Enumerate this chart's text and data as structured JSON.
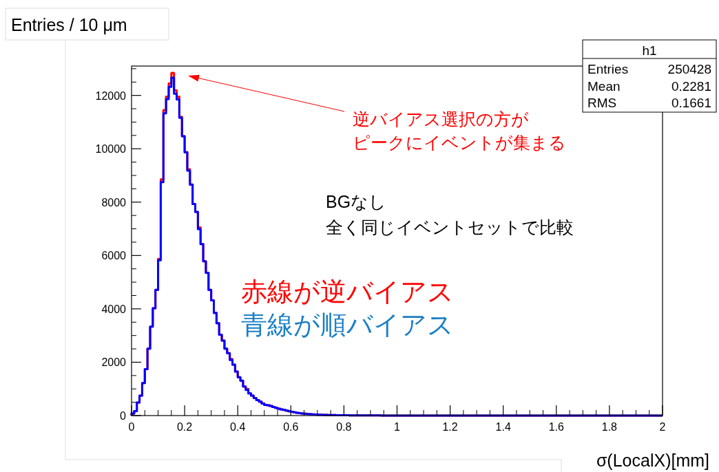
{
  "chart_data": {
    "type": "histogram",
    "ylabel": "Entries / 10 μm",
    "xlabel": "σ(LocalX)[mm]",
    "annotations": [
      "h1",
      "Entries",
      "250428",
      "Mean",
      "0.2281",
      "RMS",
      "0.1661",
      "逆バイアス選択の方が",
      "ピークにイベントが集まる",
      "BGなし",
      "全く同じイベントセットで比較",
      "赤線が逆バイアス",
      "青線が順バイアス"
    ],
    "bins": [
      0,
      0.01,
      0.02,
      0.03,
      0.04,
      0.05,
      0.06,
      0.07,
      0.08,
      0.09,
      0.1,
      0.11,
      0.12,
      0.13,
      0.14,
      0.15,
      0.16,
      0.17,
      0.18,
      0.19,
      0.2,
      0.21,
      0.22,
      0.23,
      0.24,
      0.25,
      0.26,
      0.27,
      0.28,
      0.29,
      0.3,
      0.31,
      0.32,
      0.33,
      0.34,
      0.35,
      0.36,
      0.37,
      0.38,
      0.39,
      0.4,
      0.41,
      0.42,
      0.43,
      0.44,
      0.45,
      0.46,
      0.47,
      0.48,
      0.49,
      0.5,
      0.51,
      0.52,
      0.53,
      0.54,
      0.55,
      0.56,
      0.57,
      0.58,
      0.59,
      0.6,
      0.61,
      0.62,
      0.63,
      0.64,
      0.65,
      0.66,
      0.67,
      0.68,
      0.69,
      0.7,
      0.71,
      0.72,
      0.73,
      0.74,
      0.75,
      0.76,
      0.77,
      0.78,
      0.79,
      0.8,
      0.81,
      0.82,
      0.83,
      0.84,
      0.85,
      0.86,
      0.87,
      0.88,
      0.89,
      0.9,
      0.91,
      0.92,
      0.93,
      0.94,
      0.95,
      0.96,
      0.97,
      0.98,
      0.99,
      1,
      1.01,
      1.02,
      1.03,
      1.04,
      1.05,
      1.06,
      1.07,
      1.08,
      1.09,
      1.1,
      1.11,
      1.12,
      1.13,
      1.14,
      1.15,
      1.16,
      1.17,
      1.18,
      1.19,
      1.2,
      1.21,
      1.22,
      1.23,
      1.24,
      1.25,
      1.26,
      1.27,
      1.28,
      1.29,
      1.3,
      1.31,
      1.32,
      1.33,
      1.34,
      1.35,
      1.36,
      1.37,
      1.38,
      1.39,
      1.4,
      1.41,
      1.42,
      1.43,
      1.44,
      1.45,
      1.46,
      1.47,
      1.48,
      1.49,
      1.5,
      1.51,
      1.52,
      1.53,
      1.54,
      1.55,
      1.56,
      1.57,
      1.58,
      1.59,
      1.6,
      1.61,
      1.62,
      1.63,
      1.64,
      1.65,
      1.66,
      1.67,
      1.68,
      1.69,
      1.7,
      1.71,
      1.72,
      1.73,
      1.74,
      1.75,
      1.76,
      1.77,
      1.78,
      1.79,
      1.8,
      1.81,
      1.82,
      1.83,
      1.84,
      1.85,
      1.86,
      1.87,
      1.88,
      1.89,
      1.9,
      1.91,
      1.92,
      1.93,
      1.94,
      1.95,
      1.96,
      1.97,
      1.98,
      1.99,
      2
    ],
    "series": [
      {
        "color": "#ff0000",
        "values": [
          80,
          165,
          490,
          750,
          1220,
          1740,
          2510,
          3330,
          4020,
          4710,
          5870,
          8850,
          11450,
          11950,
          12450,
          12840,
          12190,
          11950,
          11200,
          10470,
          9870,
          9230,
          8660,
          7930,
          7630,
          7050,
          6430,
          5780,
          5350,
          4710,
          4320,
          3850,
          3460,
          3030,
          2810,
          2510,
          2340,
          2120,
          1910,
          1650,
          1440,
          1310,
          1090,
          1000,
          830,
          750,
          660,
          580,
          520,
          450,
          400,
          390,
          360,
          320,
          290,
          260,
          230,
          210,
          190,
          160,
          140,
          120,
          100,
          90,
          80,
          70,
          60,
          50,
          45,
          40,
          35,
          30,
          28,
          25,
          22,
          20,
          18,
          16,
          14,
          12,
          10,
          10,
          9,
          8,
          8,
          7,
          6,
          6,
          5,
          5,
          5,
          4,
          4,
          4,
          3,
          3,
          3,
          3,
          2,
          2,
          2,
          2,
          2,
          2,
          2,
          2,
          2,
          2,
          2,
          2,
          1,
          1,
          1,
          1,
          1,
          1,
          1,
          1,
          1,
          1,
          1,
          1,
          1,
          1,
          1,
          1,
          1,
          1,
          1,
          1,
          1,
          1,
          1,
          1,
          1,
          1,
          1,
          1,
          1,
          1,
          0,
          0,
          0,
          0,
          0,
          0,
          0,
          0,
          0,
          0,
          0,
          0,
          0,
          0,
          0,
          0,
          0,
          0,
          0,
          0,
          0,
          0,
          0,
          0,
          0,
          0,
          0,
          0,
          0,
          0,
          0,
          0,
          0,
          0,
          0,
          0,
          0,
          0,
          0,
          0,
          0,
          0,
          0,
          0,
          0,
          0,
          0,
          0,
          0,
          0,
          0,
          0,
          0,
          0,
          0,
          0,
          0,
          0,
          0,
          0
        ]
      },
      {
        "color": "#0000ff",
        "values": [
          80,
          165,
          490,
          750,
          1220,
          1740,
          2510,
          3330,
          4020,
          4710,
          5820,
          8750,
          11330,
          11860,
          12320,
          12660,
          12060,
          11850,
          11160,
          10470,
          9870,
          9180,
          8660,
          7930,
          7630,
          6990,
          6430,
          5780,
          5350,
          4710,
          4320,
          3850,
          3460,
          3030,
          2810,
          2510,
          2340,
          2080,
          1910,
          1650,
          1440,
          1310,
          1090,
          960,
          830,
          750,
          660,
          580,
          520,
          450,
          400,
          390,
          360,
          320,
          290,
          260,
          230,
          210,
          190,
          160,
          140,
          120,
          100,
          90,
          80,
          70,
          60,
          50,
          45,
          40,
          35,
          30,
          28,
          25,
          22,
          20,
          18,
          16,
          14,
          12,
          10,
          10,
          9,
          8,
          8,
          7,
          6,
          6,
          5,
          5,
          5,
          4,
          4,
          4,
          3,
          3,
          3,
          3,
          2,
          2,
          2,
          2,
          2,
          2,
          2,
          2,
          2,
          2,
          2,
          2,
          1,
          1,
          1,
          1,
          1,
          1,
          1,
          1,
          1,
          1,
          1,
          1,
          1,
          1,
          1,
          1,
          1,
          1,
          1,
          1,
          1,
          1,
          1,
          1,
          1,
          1,
          1,
          1,
          1,
          1,
          0,
          0,
          0,
          0,
          0,
          0,
          0,
          0,
          0,
          0,
          0,
          0,
          0,
          0,
          0,
          0,
          0,
          0,
          0,
          0,
          0,
          0,
          0,
          0,
          0,
          0,
          0,
          0,
          0,
          0,
          0,
          0,
          0,
          0,
          0,
          0,
          0,
          0,
          0,
          0,
          0,
          0,
          0,
          0,
          0,
          0,
          0,
          0,
          0,
          0,
          0,
          0,
          0,
          0,
          0,
          0,
          0,
          0,
          0,
          0
        ]
      }
    ],
    "xlim": [
      0,
      2
    ],
    "ylim": [
      0,
      13100
    ],
    "xticks": [
      0,
      0.2,
      0.4,
      0.6,
      0.8,
      1,
      1.2,
      1.4,
      1.6,
      1.8,
      2
    ],
    "yticks": [
      0,
      2000,
      4000,
      6000,
      8000,
      10000,
      12000
    ]
  }
}
